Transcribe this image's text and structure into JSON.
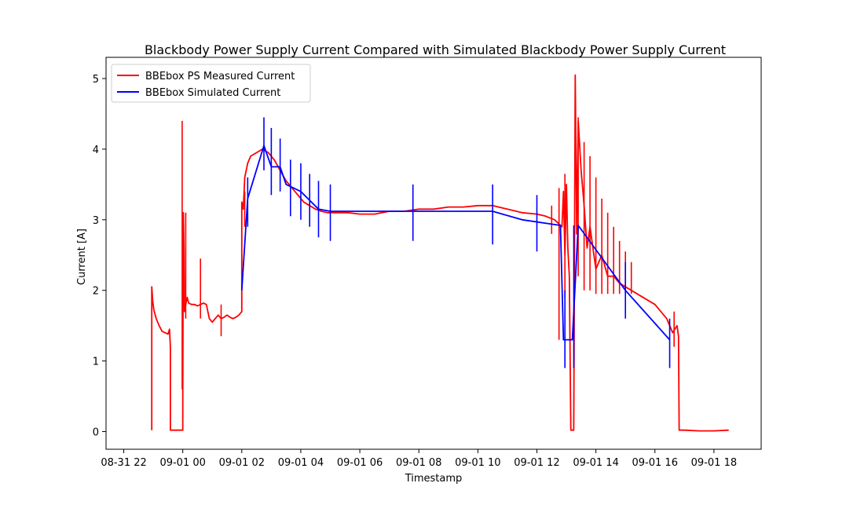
{
  "chart_data": {
    "type": "line",
    "title": "Blackbody Power Supply Current Compared with Simulated Blackbody Power Supply Current",
    "xlabel": "Timestamp",
    "ylabel": "Current [A]",
    "x_unit": "hours",
    "xlim": [
      -2.6,
      19.6
    ],
    "ylim": [
      -0.25,
      5.3
    ],
    "x_ticks": [
      {
        "value": -2,
        "label": "08-31 22"
      },
      {
        "value": 0,
        "label": "09-01 00"
      },
      {
        "value": 2,
        "label": "09-01 02"
      },
      {
        "value": 4,
        "label": "09-01 04"
      },
      {
        "value": 6,
        "label": "09-01 06"
      },
      {
        "value": 8,
        "label": "09-01 08"
      },
      {
        "value": 10,
        "label": "09-01 10"
      },
      {
        "value": 12,
        "label": "09-01 12"
      },
      {
        "value": 14,
        "label": "09-01 14"
      },
      {
        "value": 16,
        "label": "09-01 16"
      },
      {
        "value": 18,
        "label": "09-01 18"
      }
    ],
    "y_ticks": [
      {
        "value": 0,
        "label": "0"
      },
      {
        "value": 1,
        "label": "1"
      },
      {
        "value": 2,
        "label": "2"
      },
      {
        "value": 3,
        "label": "3"
      },
      {
        "value": 4,
        "label": "4"
      },
      {
        "value": 5,
        "label": "5"
      }
    ],
    "legend_position": "top-left",
    "grid": false,
    "series": [
      {
        "name": "BBEbox PS Measured Current",
        "color": "#ff0000",
        "x": [
          -1.05,
          -1.05,
          -1.02,
          -0.98,
          -0.9,
          -0.8,
          -0.7,
          -0.6,
          -0.5,
          -0.45,
          -0.42,
          -0.42,
          -0.42,
          0.0,
          0.0,
          0.02,
          0.04,
          0.06,
          0.08,
          0.1,
          0.15,
          0.2,
          0.3,
          0.4,
          0.5,
          0.6,
          0.7,
          0.8,
          0.9,
          1.0,
          1.1,
          1.2,
          1.3,
          1.4,
          1.5,
          1.6,
          1.7,
          1.8,
          1.9,
          2.0,
          2.0,
          2.05,
          2.1,
          2.2,
          2.3,
          2.5,
          2.7,
          2.9,
          3.1,
          3.3,
          3.5,
          3.7,
          3.9,
          4.1,
          4.3,
          4.5,
          4.7,
          4.9,
          5.2,
          5.6,
          6.0,
          6.5,
          7.0,
          7.5,
          8.0,
          8.5,
          9.0,
          9.5,
          10.0,
          10.5,
          11.0,
          11.5,
          12.0,
          12.3,
          12.6,
          12.85,
          12.9,
          12.95,
          13.0,
          13.05,
          13.1,
          13.15,
          13.2,
          13.25,
          13.3,
          13.35,
          13.4,
          13.5,
          13.6,
          13.7,
          13.8,
          14.0,
          14.2,
          14.4,
          14.6,
          14.8,
          15.0,
          15.2,
          15.4,
          15.6,
          15.8,
          16.0,
          16.2,
          16.4,
          16.6,
          16.75,
          16.8,
          16.82,
          16.85,
          17.0,
          17.5,
          18.0,
          18.5
        ],
        "y": [
          0.02,
          2.05,
          1.85,
          1.72,
          1.6,
          1.5,
          1.42,
          1.4,
          1.38,
          1.45,
          1.2,
          0.02,
          0.02,
          0.02,
          0.6,
          3.1,
          2.6,
          1.7,
          1.75,
          1.8,
          1.9,
          1.82,
          1.8,
          1.8,
          1.78,
          1.8,
          1.82,
          1.8,
          1.6,
          1.55,
          1.6,
          1.65,
          1.6,
          1.62,
          1.65,
          1.62,
          1.6,
          1.62,
          1.65,
          1.7,
          3.25,
          3.15,
          3.6,
          3.8,
          3.9,
          3.95,
          4.0,
          3.95,
          3.85,
          3.7,
          3.55,
          3.45,
          3.35,
          3.25,
          3.2,
          3.15,
          3.12,
          3.1,
          3.1,
          3.1,
          3.08,
          3.08,
          3.12,
          3.12,
          3.15,
          3.15,
          3.18,
          3.18,
          3.2,
          3.2,
          3.15,
          3.1,
          3.08,
          3.05,
          3.0,
          2.9,
          3.4,
          2.5,
          3.5,
          2.6,
          2.2,
          0.02,
          0.02,
          0.02,
          5.05,
          2.8,
          4.4,
          3.7,
          3.2,
          2.6,
          2.9,
          2.3,
          2.5,
          2.2,
          2.2,
          2.1,
          2.05,
          2.0,
          1.95,
          1.9,
          1.85,
          1.8,
          1.7,
          1.6,
          1.4,
          1.5,
          1.35,
          0.02,
          0.02,
          0.02,
          0.01,
          0.01,
          0.02
        ],
        "spikes": [
          {
            "x": -0.02,
            "low": 0.6,
            "high": 4.4
          },
          {
            "x": 0.1,
            "low": 1.6,
            "high": 3.1
          },
          {
            "x": 0.6,
            "low": 1.6,
            "high": 2.45
          },
          {
            "x": 1.3,
            "low": 1.35,
            "high": 1.8
          },
          {
            "x": 2.1,
            "low": 2.9,
            "high": 3.4
          },
          {
            "x": 12.5,
            "low": 2.8,
            "high": 3.2
          },
          {
            "x": 12.75,
            "low": 1.3,
            "high": 3.45
          },
          {
            "x": 12.95,
            "low": 1.9,
            "high": 3.65
          },
          {
            "x": 13.4,
            "low": 2.2,
            "high": 4.45
          },
          {
            "x": 13.6,
            "low": 2.0,
            "high": 4.1
          },
          {
            "x": 13.8,
            "low": 2.0,
            "high": 3.9
          },
          {
            "x": 14.0,
            "low": 1.95,
            "high": 3.6
          },
          {
            "x": 14.2,
            "low": 1.95,
            "high": 3.3
          },
          {
            "x": 14.4,
            "low": 1.95,
            "high": 3.1
          },
          {
            "x": 14.6,
            "low": 1.95,
            "high": 2.9
          },
          {
            "x": 14.8,
            "low": 1.95,
            "high": 2.7
          },
          {
            "x": 15.0,
            "low": 1.95,
            "high": 2.55
          },
          {
            "x": 15.2,
            "low": 1.95,
            "high": 2.4
          },
          {
            "x": 16.65,
            "low": 1.2,
            "high": 1.7
          }
        ]
      },
      {
        "name": "BBEbox Simulated Current",
        "color": "#0000ff",
        "x": [
          2.0,
          2.2,
          2.75,
          3.0,
          3.3,
          3.5,
          4.0,
          4.6,
          5.0,
          7.8,
          10.5,
          11.5,
          12.8,
          12.9,
          13.2,
          13.4,
          15.0,
          16.5
        ],
        "y": [
          2.0,
          3.3,
          4.05,
          3.75,
          3.75,
          3.5,
          3.4,
          3.15,
          3.12,
          3.12,
          3.12,
          3.0,
          2.92,
          1.3,
          1.3,
          2.92,
          2.0,
          1.3
        ],
        "spikes": [
          {
            "x": 2.2,
            "low": 2.9,
            "high": 3.6
          },
          {
            "x": 2.75,
            "low": 3.7,
            "high": 4.45
          },
          {
            "x": 3.0,
            "low": 3.35,
            "high": 4.3
          },
          {
            "x": 3.3,
            "low": 3.4,
            "high": 4.15
          },
          {
            "x": 3.65,
            "low": 3.05,
            "high": 3.85
          },
          {
            "x": 4.0,
            "low": 3.0,
            "high": 3.8
          },
          {
            "x": 4.3,
            "low": 2.9,
            "high": 3.65
          },
          {
            "x": 4.6,
            "low": 2.75,
            "high": 3.55
          },
          {
            "x": 5.0,
            "low": 2.7,
            "high": 3.5
          },
          {
            "x": 7.8,
            "low": 2.7,
            "high": 3.5
          },
          {
            "x": 10.5,
            "low": 2.65,
            "high": 3.5
          },
          {
            "x": 12.0,
            "low": 2.55,
            "high": 3.35
          },
          {
            "x": 12.95,
            "low": 0.9,
            "high": 2.0
          },
          {
            "x": 13.25,
            "low": 0.9,
            "high": 2.92
          },
          {
            "x": 15.0,
            "low": 1.6,
            "high": 2.4
          },
          {
            "x": 16.5,
            "low": 0.9,
            "high": 1.6
          }
        ]
      }
    ]
  }
}
